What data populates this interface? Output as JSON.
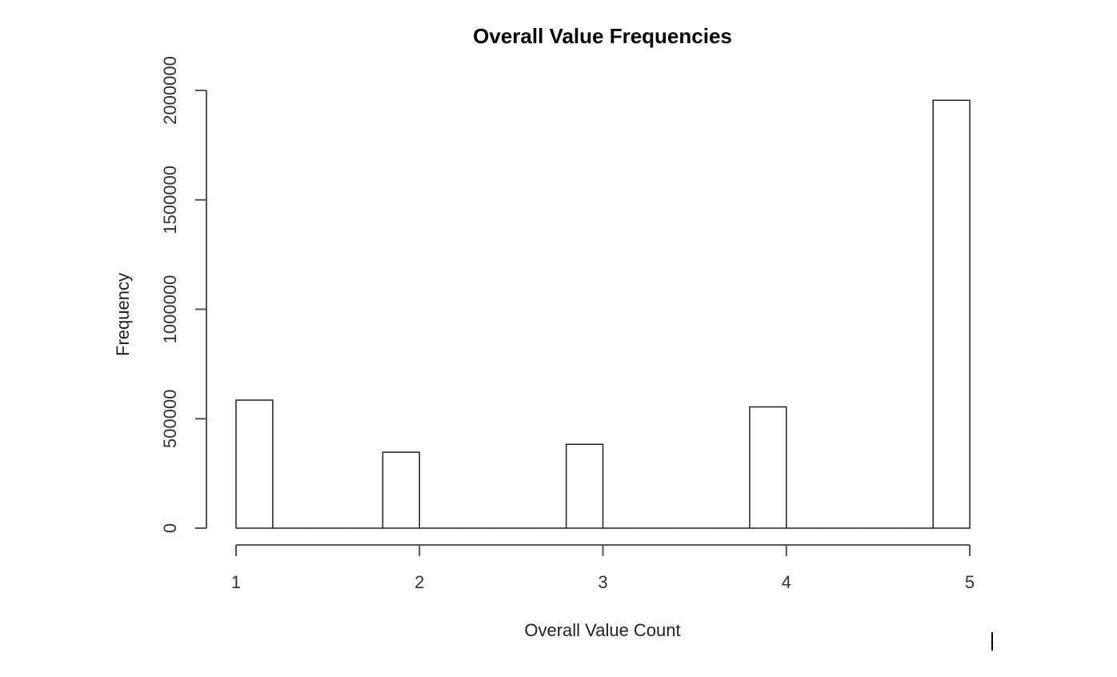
{
  "chart_data": {
    "type": "bar",
    "title": "Overall Value Frequencies",
    "xlabel": "Overall Value Count",
    "ylabel": "Frequency",
    "categories": [
      "1",
      "2",
      "3",
      "4",
      "5"
    ],
    "values": [
      585000,
      347000,
      383000,
      554000,
      1955000
    ],
    "bins": [
      {
        "x0": 1.0,
        "x1": 1.2,
        "value": 585000
      },
      {
        "x0": 1.2,
        "x1": 1.4,
        "value": 0
      },
      {
        "x0": 1.4,
        "x1": 1.6,
        "value": 0
      },
      {
        "x0": 1.6,
        "x1": 1.8,
        "value": 0
      },
      {
        "x0": 1.8,
        "x1": 2.0,
        "value": 347000
      },
      {
        "x0": 2.0,
        "x1": 2.2,
        "value": 0
      },
      {
        "x0": 2.2,
        "x1": 2.4,
        "value": 0
      },
      {
        "x0": 2.4,
        "x1": 2.6,
        "value": 0
      },
      {
        "x0": 2.6,
        "x1": 2.8,
        "value": 0
      },
      {
        "x0": 2.8,
        "x1": 3.0,
        "value": 383000
      },
      {
        "x0": 3.0,
        "x1": 3.2,
        "value": 0
      },
      {
        "x0": 3.2,
        "x1": 3.4,
        "value": 0
      },
      {
        "x0": 3.4,
        "x1": 3.6,
        "value": 0
      },
      {
        "x0": 3.6,
        "x1": 3.8,
        "value": 0
      },
      {
        "x0": 3.8,
        "x1": 4.0,
        "value": 554000
      },
      {
        "x0": 4.0,
        "x1": 4.2,
        "value": 0
      },
      {
        "x0": 4.2,
        "x1": 4.4,
        "value": 0
      },
      {
        "x0": 4.4,
        "x1": 4.6,
        "value": 0
      },
      {
        "x0": 4.6,
        "x1": 4.8,
        "value": 0
      },
      {
        "x0": 4.8,
        "x1": 5.0,
        "value": 1955000
      }
    ],
    "x_ticks": [
      {
        "value": 1,
        "label": "1"
      },
      {
        "value": 2,
        "label": "2"
      },
      {
        "value": 3,
        "label": "3"
      },
      {
        "value": 4,
        "label": "4"
      },
      {
        "value": 5,
        "label": "5"
      }
    ],
    "y_ticks": [
      {
        "value": 0,
        "label": "0"
      },
      {
        "value": 500000,
        "label": "500000"
      },
      {
        "value": 1000000,
        "label": "1000000"
      },
      {
        "value": 1500000,
        "label": "1500000"
      },
      {
        "value": 2000000,
        "label": "2000000"
      }
    ],
    "xlim": [
      1,
      5
    ],
    "ylim": [
      0,
      2000000
    ],
    "grid": false,
    "legend": "none",
    "colors": {
      "bar_fill": "#ffffff",
      "bar_stroke": "#222222",
      "axis": "#555555"
    }
  }
}
